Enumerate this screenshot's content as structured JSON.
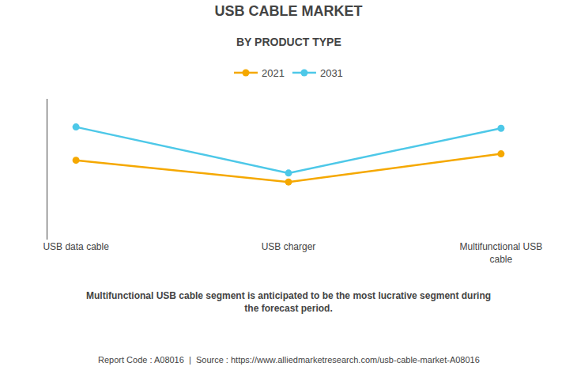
{
  "chart_data": {
    "type": "line",
    "title": "USB CABLE MARKET",
    "subtitle": "BY PRODUCT TYPE",
    "categories": [
      "USB data cable",
      "USB charger",
      "Multifunctional USB\ncable"
    ],
    "series": [
      {
        "name": "2021",
        "color": "#F5A800",
        "values": [
          0.62,
          0.45,
          0.67
        ]
      },
      {
        "name": "2031",
        "color": "#4DC8E8",
        "values": [
          0.88,
          0.52,
          0.87
        ]
      }
    ],
    "ylim": [
      0.0,
      1.1
    ],
    "grid": false,
    "legend": "top",
    "tick_labels": "x",
    "marker": "circle",
    "annotations": [
      "Multifunctional USB cable segment is anticipated to be the most lucrative segment during\nthe forecast period.",
      "Report Code : A08016  |  Source : https://www.alliedmarketresearch.com/usb-cable-market-A08016"
    ]
  }
}
